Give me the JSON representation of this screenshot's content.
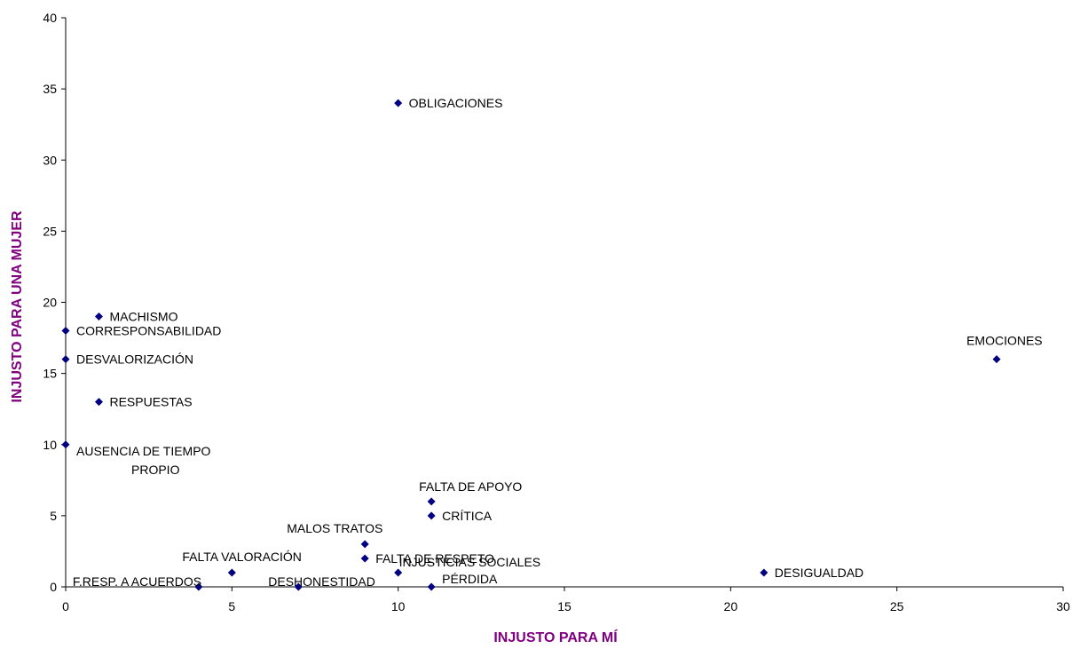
{
  "chart_data": {
    "type": "scatter",
    "title": "",
    "xlabel": "INJUSTO PARA MÍ",
    "ylabel": "INJUSTO PARA UNA MUJER",
    "xlim": [
      0,
      30
    ],
    "ylim": [
      0,
      40
    ],
    "xticks": [
      "0",
      "5",
      "10",
      "15",
      "20",
      "25",
      "30"
    ],
    "yticks": [
      "0",
      "5",
      "10",
      "15",
      "20",
      "25",
      "30",
      "35",
      "40"
    ],
    "grid": false,
    "legend": "none",
    "marker_color": "#000080",
    "axis_title_color": "#800080",
    "points": [
      {
        "label": "OBLIGACIONES",
        "x": 10,
        "y": 34
      },
      {
        "label": "MACHISMO",
        "x": 1,
        "y": 19
      },
      {
        "label": "CORRESPONSABILIDAD",
        "x": 0,
        "y": 18
      },
      {
        "label": "DESVALORIZACIÓN",
        "x": 0,
        "y": 16
      },
      {
        "label": "RESPUESTAS",
        "x": 1,
        "y": 13
      },
      {
        "label": [
          "AUSENCIA DE TIEMPO",
          "PROPIO"
        ],
        "x": 0,
        "y": 10
      },
      {
        "label": "EMOCIONES",
        "x": 28,
        "y": 16
      },
      {
        "label": "FALTA DE APOYO",
        "x": 11,
        "y": 6
      },
      {
        "label": "CRÍTICA",
        "x": 11,
        "y": 5
      },
      {
        "label": "MALOS TRATOS",
        "x": 9,
        "y": 3
      },
      {
        "label": "FALTA DE RESPETO",
        "x": 9,
        "y": 2
      },
      {
        "label": "FALTA VALORACIÓN",
        "x": 5,
        "y": 1
      },
      {
        "label": "INJUSTICIAS SOCIALES",
        "x": 10,
        "y": 1
      },
      {
        "label": "DESIGUALDAD",
        "x": 21,
        "y": 1
      },
      {
        "label": "F.RESP. A ACUERDOS",
        "x": 4,
        "y": 0
      },
      {
        "label": "DESHONESTIDAD",
        "x": 7,
        "y": 0
      },
      {
        "label": "PÉRDIDA",
        "x": 11,
        "y": 0
      }
    ]
  }
}
